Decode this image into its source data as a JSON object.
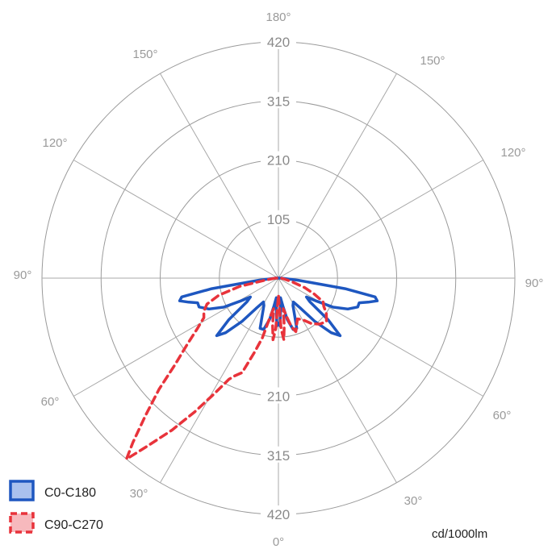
{
  "chart_data": {
    "type": "polar-line",
    "unit_label": "cd/1000lm",
    "radial_ticks": [
      105,
      210,
      315,
      420
    ],
    "radial_max": 420,
    "angle_labels": {
      "top": "180°",
      "bottom": "0°",
      "left_mid": "90°",
      "right_mid": "90°",
      "upper_left": [
        "150°",
        "120°"
      ],
      "upper_right": [
        "150°",
        "120°"
      ],
      "lower_left": [
        "60°",
        "30°"
      ],
      "lower_right": [
        "60°",
        "30°"
      ]
    },
    "legend_position": "bottom-left",
    "series": [
      {
        "name": "C0-C180",
        "color": "#1e57c0",
        "fill": "#a9c1ee",
        "dash": "solid",
        "points": [
          [
            -90,
            5
          ],
          [
            -84,
            35
          ],
          [
            -81,
            120
          ],
          [
            -79,
            175
          ],
          [
            -77,
            180
          ],
          [
            -75,
            165
          ],
          [
            -73,
            150
          ],
          [
            -70,
            150
          ],
          [
            -66,
            135
          ],
          [
            -62,
            110
          ],
          [
            -59,
            80
          ],
          [
            -56,
            60
          ],
          [
            -53,
            70
          ],
          [
            -50,
            115
          ],
          [
            -47,
            150
          ],
          [
            -44,
            135
          ],
          [
            -40,
            100
          ],
          [
            -36,
            65
          ],
          [
            -32,
            50
          ],
          [
            -28,
            55
          ],
          [
            -23,
            75
          ],
          [
            -20,
            95
          ],
          [
            -16,
            95
          ],
          [
            -12,
            75
          ],
          [
            -9,
            50
          ],
          [
            -6,
            35
          ],
          [
            -4,
            55
          ],
          [
            -2,
            85
          ],
          [
            0,
            80
          ],
          [
            2,
            85
          ],
          [
            4,
            55
          ],
          [
            6,
            35
          ],
          [
            9,
            50
          ],
          [
            12,
            75
          ],
          [
            16,
            95
          ],
          [
            20,
            95
          ],
          [
            23,
            75
          ],
          [
            28,
            55
          ],
          [
            32,
            50
          ],
          [
            36,
            65
          ],
          [
            40,
            100
          ],
          [
            44,
            135
          ],
          [
            47,
            150
          ],
          [
            50,
            115
          ],
          [
            53,
            70
          ],
          [
            56,
            60
          ],
          [
            59,
            80
          ],
          [
            62,
            110
          ],
          [
            66,
            135
          ],
          [
            70,
            150
          ],
          [
            73,
            150
          ],
          [
            75,
            165
          ],
          [
            77,
            180
          ],
          [
            79,
            175
          ],
          [
            81,
            120
          ],
          [
            84,
            35
          ],
          [
            90,
            5
          ]
        ]
      },
      {
        "name": "C90-C270",
        "color": "#e8333b",
        "fill": "#f7b9bd",
        "dash": "dashed",
        "points": [
          [
            -90,
            5
          ],
          [
            -82,
            20
          ],
          [
            -78,
            70
          ],
          [
            -74,
            110
          ],
          [
            -70,
            135
          ],
          [
            -66,
            145
          ],
          [
            -62,
            150
          ],
          [
            -58,
            170
          ],
          [
            -54,
            200
          ],
          [
            -50,
            240
          ],
          [
            -47,
            290
          ],
          [
            -44,
            340
          ],
          [
            -41.5,
            390
          ],
          [
            -40,
            420
          ],
          [
            -38,
            380
          ],
          [
            -35,
            330
          ],
          [
            -32,
            280
          ],
          [
            -29,
            235
          ],
          [
            -26,
            200
          ],
          [
            -24,
            190
          ],
          [
            -21,
            180
          ],
          [
            -18,
            140
          ],
          [
            -15,
            110
          ],
          [
            -12,
            70
          ],
          [
            -9,
            55
          ],
          [
            -7,
            85
          ],
          [
            -5,
            110
          ],
          [
            -3,
            90
          ],
          [
            0,
            30
          ],
          [
            3,
            90
          ],
          [
            5,
            110
          ],
          [
            7,
            85
          ],
          [
            9,
            55
          ],
          [
            12,
            70
          ],
          [
            15,
            90
          ],
          [
            18,
            100
          ],
          [
            21,
            90
          ],
          [
            25,
            80
          ],
          [
            30,
            85
          ],
          [
            36,
            100
          ],
          [
            42,
            110
          ],
          [
            48,
            115
          ],
          [
            54,
            105
          ],
          [
            58,
            95
          ],
          [
            62,
            90
          ],
          [
            66,
            70
          ],
          [
            70,
            50
          ],
          [
            75,
            25
          ],
          [
            82,
            10
          ],
          [
            90,
            5
          ]
        ]
      }
    ]
  }
}
